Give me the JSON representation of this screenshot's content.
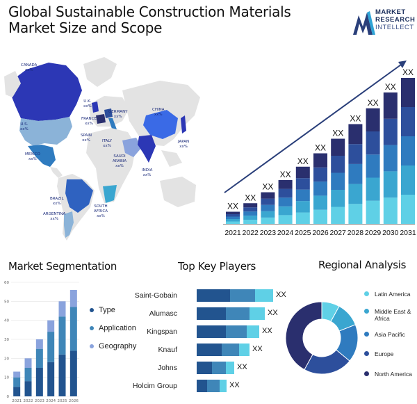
{
  "header": {
    "title": "Global Sustainable Construction Materials Market Size and Scope",
    "logo": {
      "line1": "MARKET",
      "line2": "RESEARCH",
      "line3": "INTELLECT"
    }
  },
  "map": {
    "labels": [
      {
        "name": "CANADA",
        "value": "xx%"
      },
      {
        "name": "U.S.",
        "value": "xx%"
      },
      {
        "name": "MEXICO",
        "value": "xx%"
      },
      {
        "name": "BRAZIL",
        "value": "xx%"
      },
      {
        "name": "ARGENTINA",
        "value": "xx%"
      },
      {
        "name": "U.K.",
        "value": "xx%"
      },
      {
        "name": "FRANCE",
        "value": "xx%"
      },
      {
        "name": "SPAIN",
        "value": "xx%"
      },
      {
        "name": "GERMANY",
        "value": "xx%"
      },
      {
        "name": "ITALY",
        "value": "xx%"
      },
      {
        "name": "SAUDI ARABIA",
        "value": "xx%"
      },
      {
        "name": "SOUTH AFRICA",
        "value": "xx%"
      },
      {
        "name": "CHINA",
        "value": "xx%"
      },
      {
        "name": "INDIA",
        "value": "xx%"
      },
      {
        "name": "JAPAN",
        "value": "xx%"
      }
    ]
  },
  "colors": {
    "navy": "#2a2f6e",
    "dark_blue": "#2d4f9c",
    "mid_blue": "#2f7bbf",
    "teal": "#3aa6d0",
    "light_teal": "#5fd0e6",
    "seg_light": "#8aa3dd",
    "seg_mid": "#3f86b8",
    "seg_dark": "#22548f"
  },
  "chart_data": [
    {
      "type": "bar",
      "stacked": true,
      "categories": [
        "2021",
        "2022",
        "2023",
        "2024",
        "2025",
        "2026",
        "2027",
        "2028",
        "2029",
        "2030",
        "2031"
      ],
      "value_labels": [
        "XX",
        "XX",
        "XX",
        "XX",
        "XX",
        "XX",
        "XX",
        "XX",
        "XX",
        "XX",
        "XX"
      ],
      "series": [
        {
          "values": [
            1.0,
            1.7,
            2.6,
            3.6,
            4.7,
            5.8,
            7.0,
            8.2,
            9.5,
            10.8,
            12.0
          ]
        },
        {
          "values": [
            1.0,
            1.7,
            2.6,
            3.6,
            4.7,
            5.8,
            7.0,
            8.2,
            9.5,
            10.8,
            12.0
          ]
        },
        {
          "values": [
            1.0,
            1.7,
            2.6,
            3.6,
            4.7,
            5.8,
            7.0,
            8.2,
            9.5,
            10.8,
            12.0
          ]
        },
        {
          "values": [
            1.0,
            1.7,
            2.6,
            3.6,
            4.7,
            5.8,
            7.0,
            8.2,
            9.5,
            10.8,
            12.0
          ]
        },
        {
          "values": [
            1.0,
            1.7,
            2.6,
            3.6,
            4.7,
            5.8,
            7.0,
            8.2,
            9.5,
            10.8,
            12.0
          ]
        }
      ],
      "trend_arrow": true,
      "grid": false
    },
    {
      "type": "bar",
      "stacked": true,
      "title": "Market Segmentation",
      "categories": [
        "2021",
        "2022",
        "2023",
        "2024",
        "2025",
        "2026"
      ],
      "series": [
        {
          "name": "Type",
          "values": [
            5,
            8,
            15,
            18,
            22,
            24
          ]
        },
        {
          "name": "Application",
          "values": [
            5,
            7,
            10,
            16,
            20,
            23
          ]
        },
        {
          "name": "Geography",
          "values": [
            3,
            5,
            5,
            6,
            8,
            9
          ]
        }
      ],
      "yticks": [
        0,
        10,
        20,
        30,
        40,
        50,
        60
      ],
      "ylim": [
        0,
        60
      ],
      "legend": "right",
      "grid": true
    },
    {
      "type": "bar",
      "orientation": "horizontal",
      "stacked": true,
      "title": "Top Key Players",
      "categories": [
        "Saint-Gobain",
        "Alumasc",
        "Kingspan",
        "Knauf",
        "Johns",
        "Holcim Group"
      ],
      "value_labels": [
        "XX",
        "XX",
        "XX",
        "XX",
        "XX",
        "XX"
      ],
      "series": [
        {
          "values": [
            48,
            42,
            42,
            36,
            22,
            15
          ]
        },
        {
          "values": [
            36,
            34,
            30,
            25,
            20,
            18
          ]
        },
        {
          "values": [
            26,
            22,
            18,
            15,
            12,
            10
          ]
        }
      ]
    },
    {
      "type": "pie",
      "donut": true,
      "title": "Regional Analysis",
      "labels": [
        "Latin America",
        "Middle East & Africa",
        "Asia Pacific",
        "Europe",
        "North America"
      ],
      "values": [
        8,
        11,
        17,
        22,
        42
      ],
      "legend": "right"
    }
  ]
}
